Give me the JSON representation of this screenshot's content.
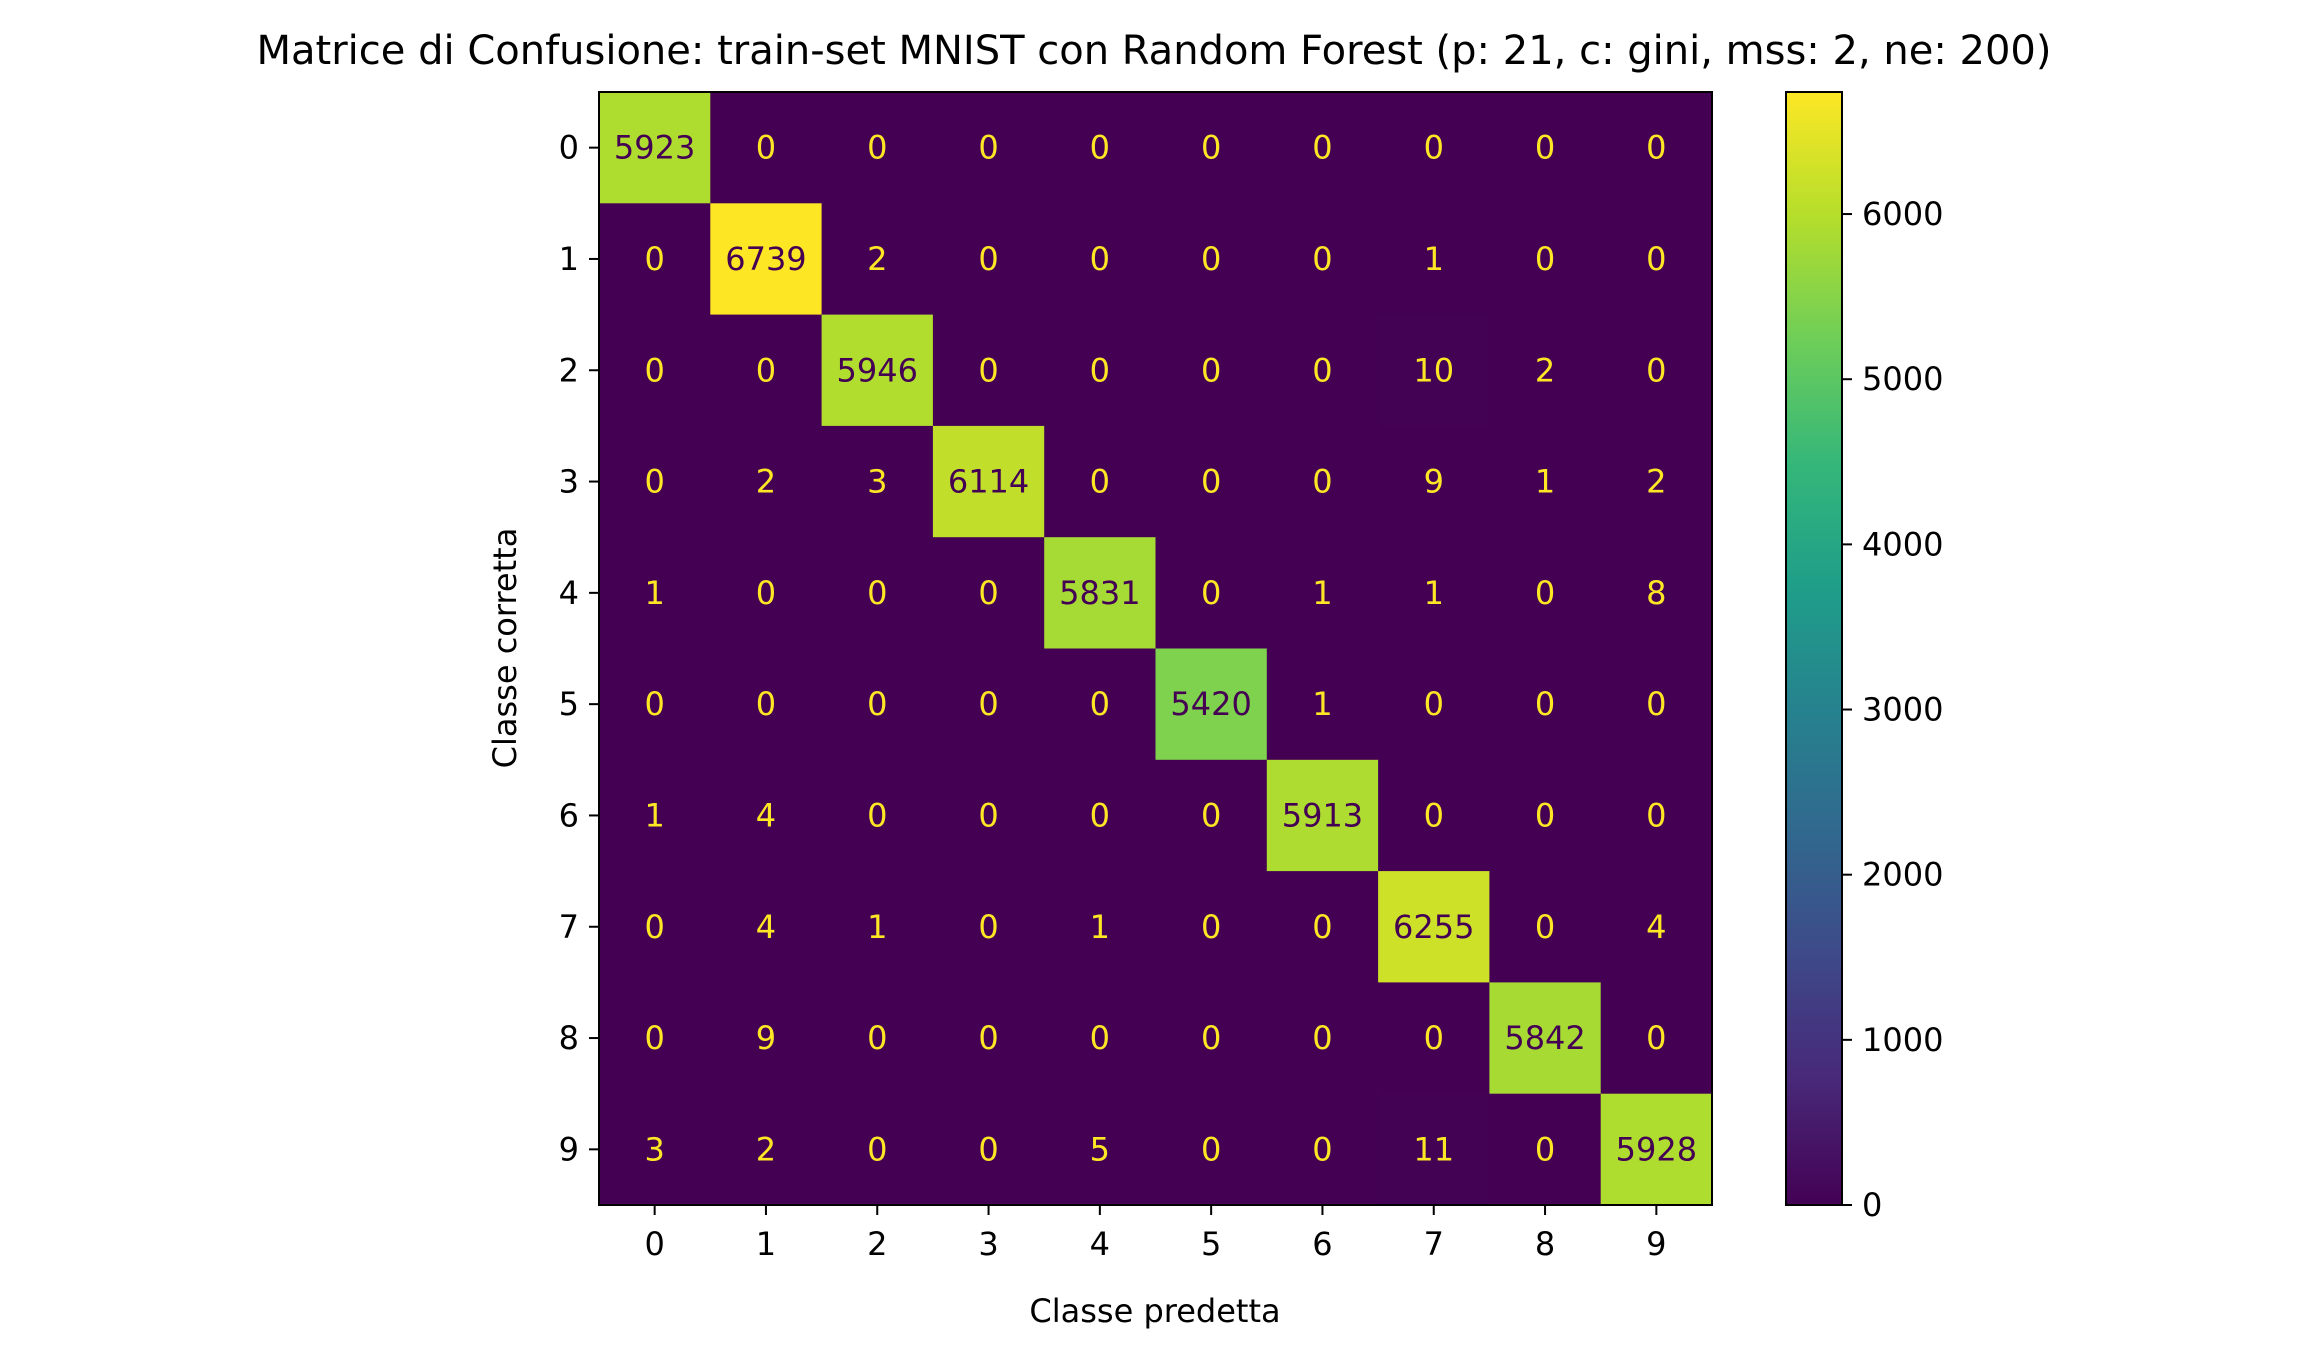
{
  "chart_data": {
    "type": "heatmap",
    "title": "Matrice di Confusione: train-set MNIST con Random Forest (p: 21, c: gini, mss: 2, ne: 200)",
    "xlabel": "Classe predetta",
    "ylabel": "Classe corretta",
    "x_categories": [
      "0",
      "1",
      "2",
      "3",
      "4",
      "5",
      "6",
      "7",
      "8",
      "9"
    ],
    "y_categories": [
      "0",
      "1",
      "2",
      "3",
      "4",
      "5",
      "6",
      "7",
      "8",
      "9"
    ],
    "values": [
      [
        5923,
        0,
        0,
        0,
        0,
        0,
        0,
        0,
        0,
        0
      ],
      [
        0,
        6739,
        2,
        0,
        0,
        0,
        0,
        1,
        0,
        0
      ],
      [
        0,
        0,
        5946,
        0,
        0,
        0,
        0,
        10,
        2,
        0
      ],
      [
        0,
        2,
        3,
        6114,
        0,
        0,
        0,
        9,
        1,
        2
      ],
      [
        1,
        0,
        0,
        0,
        5831,
        0,
        1,
        1,
        0,
        8
      ],
      [
        0,
        0,
        0,
        0,
        0,
        5420,
        1,
        0,
        0,
        0
      ],
      [
        1,
        4,
        0,
        0,
        0,
        0,
        5913,
        0,
        0,
        0
      ],
      [
        0,
        4,
        1,
        0,
        1,
        0,
        0,
        6255,
        0,
        4
      ],
      [
        0,
        9,
        0,
        0,
        0,
        0,
        0,
        0,
        5842,
        0
      ],
      [
        3,
        2,
        0,
        0,
        5,
        0,
        0,
        11,
        0,
        5928
      ]
    ],
    "colormap": "viridis",
    "color_range": [
      0,
      6739
    ],
    "colorbar_ticks": [
      0,
      1000,
      2000,
      3000,
      4000,
      5000,
      6000
    ],
    "colorbar_tick_labels": [
      "0",
      "1000",
      "2000",
      "3000",
      "4000",
      "5000",
      "6000"
    ],
    "label_color_dark_cell": "#fde725",
    "label_color_bright_cell": "#440154",
    "grid": false
  }
}
